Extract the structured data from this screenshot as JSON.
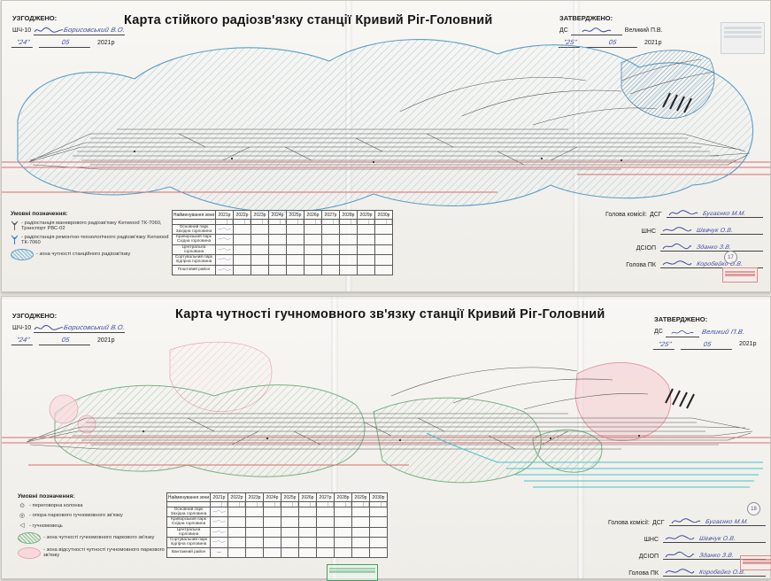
{
  "colors": {
    "radio_zone_blue": "#5b9fc6",
    "audio_zone_green": "#79b184",
    "no_audio_zone_pink": "#e8a4ad",
    "red_track_line": "#d96b6b",
    "teal_line": "#45c2ca",
    "handwriting_ink": "#3b4aa0"
  },
  "s1": {
    "agreed": {
      "heading": "УЗГОДЖЕНО:",
      "org": "ШЧ-10",
      "signature": "Борисовський В.О.",
      "day": "\"24\"",
      "month": "05",
      "year": "2021р"
    },
    "title": "Карта стійкого радіозв'язку станції Кривий Ріг-Головний",
    "approved": {
      "heading": "ЗАТВЕРДЖЕНО:",
      "org": "ДС",
      "name": "Великий П.В.",
      "day": "\"25\"",
      "month": "05",
      "year": "2021р"
    },
    "legend": {
      "title": "Умовні позначення:",
      "items": [
        {
          "icon": "shunting-radio-antenna-icon",
          "text": "- радіостанція маневрового радіозв'язку Kenwood ТК-7060, Транспорт РВС-02"
        },
        {
          "icon": "maintenance-radio-antenna-icon",
          "text": "- радіостанція ремонтно-технологічного радіозв'язку Kenwood ТК-7060"
        },
        {
          "icon": "radio-zone-swatch",
          "text": "- зона чутності станційного радіозв'язку"
        }
      ]
    },
    "table": {
      "zone_header": "Найменування зони",
      "years": [
        "2021р",
        "2022р",
        "2023р",
        "2024р",
        "2025р",
        "2026р",
        "2027р",
        "2028р",
        "2029р",
        "2030р"
      ],
      "rows": [
        {
          "zone": "Основний парк Західна горловина",
          "mark": "sig"
        },
        {
          "zone": "Криворізький парк Східна горловина",
          "mark": "sig"
        },
        {
          "zone": "Центральна горловина",
          "mark": "sig"
        },
        {
          "zone": "Сортувальний парк підгірна горловина",
          "mark": "sig"
        },
        {
          "zone": "Поштовий район",
          "mark": "sig"
        }
      ]
    },
    "commission": {
      "label": "Голова комісії:",
      "rows": [
        {
          "role": "ДСГ",
          "name": "Бугаєнко М.М."
        },
        {
          "role": "ШНС",
          "name": "Шевчук О.В."
        },
        {
          "role": "ДСІОП",
          "name": "Зданко З.В."
        },
        {
          "role": "Голова ПК",
          "name": "Коробейко О.В."
        }
      ]
    },
    "page_number": "17"
  },
  "s2": {
    "agreed": {
      "heading": "УЗГОДЖЕНО:",
      "org": "ШЧ-10",
      "signature": "Борисовський В.О.",
      "day": "\"24\"",
      "month": "05",
      "year": "2021р"
    },
    "title": "Карта чутності гучномовного  зв'язку станції Кривий Ріг-Головний",
    "approved": {
      "heading": "ЗАТВЕРДЖЕНО:",
      "org": "ДС",
      "name": "Великий П.В.",
      "day": "\"25\"",
      "month": "05",
      "year": "2021р"
    },
    "legend": {
      "title": "Умовні позначення:",
      "items": [
        {
          "icon": "intercom-column-icon",
          "glyph": "⊙",
          "text": "- переговорна колонка"
        },
        {
          "icon": "loudspeaker-pole-icon",
          "glyph": "◎",
          "text": "- опора паркового гучномовного зв'язку"
        },
        {
          "icon": "loudspeaker-icon",
          "glyph": "◁",
          "text": "- гучномовець"
        },
        {
          "icon": "audio-zone-swatch",
          "text": "- зона чутності гучномовного паркового зв'язку"
        },
        {
          "icon": "no-audio-zone-swatch",
          "text": "- зона відсутності чутності гучномовного паркового зв'язку"
        }
      ]
    },
    "table": {
      "zone_header": "Найменування зони",
      "years": [
        "2021р",
        "2022р",
        "2023р",
        "2024р",
        "2025р",
        "2026р",
        "2027р",
        "2028р",
        "2029р",
        "2030р"
      ],
      "rows": [
        {
          "zone": "Основний парк Західна горловина",
          "mark": "sig"
        },
        {
          "zone": "Криворізький парк Східна горловина",
          "mark": "sig"
        },
        {
          "zone": "Центральна горловина",
          "mark": "sig"
        },
        {
          "zone": "Сортувальний парк підгірна горловина",
          "mark": "sig"
        },
        {
          "zone": "Вантажний район",
          "mark": "dash"
        }
      ]
    },
    "commission": {
      "label": "Голова комісії:",
      "rows": [
        {
          "role": "ДСГ",
          "name": "Бугаєнко М.М."
        },
        {
          "role": "ШНС",
          "name": "Шевчук О.В."
        },
        {
          "role": "ДСІОП",
          "name": "Зданко З.В."
        },
        {
          "role": "Голова ПК",
          "name": "Коробейко О.В."
        }
      ]
    },
    "page_number": "18"
  }
}
